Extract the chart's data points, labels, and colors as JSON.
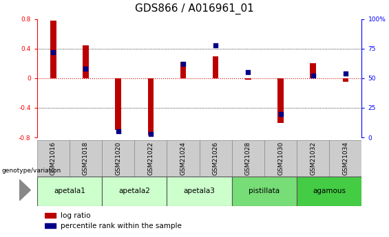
{
  "title": "GDS866 / A016961_01",
  "samples": [
    "GSM21016",
    "GSM21018",
    "GSM21020",
    "GSM21022",
    "GSM21024",
    "GSM21026",
    "GSM21028",
    "GSM21030",
    "GSM21032",
    "GSM21034"
  ],
  "log_ratio": [
    0.78,
    0.44,
    -0.7,
    -0.77,
    0.22,
    0.3,
    -0.02,
    -0.6,
    0.2,
    -0.05
  ],
  "percentile_rank": [
    72,
    58,
    5,
    3,
    62,
    78,
    55,
    20,
    52,
    54
  ],
  "group_spans": [
    {
      "label": "apetala1",
      "start": 0,
      "end": 1,
      "color": "#ccffcc"
    },
    {
      "label": "apetala2",
      "start": 2,
      "end": 3,
      "color": "#ccffcc"
    },
    {
      "label": "apetala3",
      "start": 4,
      "end": 5,
      "color": "#ccffcc"
    },
    {
      "label": "pistillata",
      "start": 6,
      "end": 7,
      "color": "#77dd77"
    },
    {
      "label": "agamous",
      "start": 8,
      "end": 9,
      "color": "#44cc44"
    }
  ],
  "ylim_left": [
    -0.8,
    0.8
  ],
  "ylim_right": [
    0,
    100
  ],
  "yticks_left": [
    -0.8,
    -0.4,
    0.0,
    0.4,
    0.8
  ],
  "yticks_right": [
    0,
    25,
    50,
    75,
    100
  ],
  "bar_color": "#bb0000",
  "dot_color": "#000088",
  "zero_line_color": "#cc0000",
  "grid_color": "#333333",
  "background_color": "#ffffff",
  "title_fontsize": 11,
  "tick_fontsize": 6.5,
  "group_label_fontsize": 7.5,
  "legend_fontsize": 7.5,
  "bar_width": 0.18,
  "dot_size": 14,
  "sample_cell_color": "#cccccc",
  "sample_cell_border": "#888888"
}
